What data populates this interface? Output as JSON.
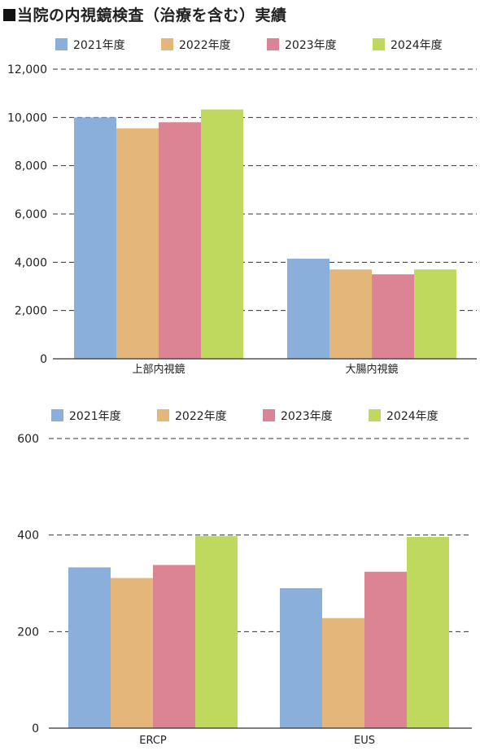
{
  "title": "■当院の内視鏡検査（治療を含む）実績",
  "colors": {
    "2021": "#8aafdb",
    "2022": "#e5b67a",
    "2023": "#dc8494",
    "2024": "#bfd95e",
    "grid": "#333333",
    "axis": "#333333"
  },
  "chart_data": [
    {
      "type": "bar",
      "categories": [
        "上部内視鏡",
        "大腸内視鏡"
      ],
      "series": [
        {
          "name": "2021年度",
          "values": [
            10000,
            4150
          ]
        },
        {
          "name": "2022年度",
          "values": [
            9550,
            3700
          ]
        },
        {
          "name": "2023年度",
          "values": [
            9800,
            3500
          ]
        },
        {
          "name": "2024年度",
          "values": [
            10330,
            3700
          ]
        }
      ],
      "ylim": [
        0,
        12000
      ],
      "yticks": [
        0,
        2000,
        4000,
        6000,
        8000,
        10000,
        12000
      ],
      "ytick_labels": [
        "0",
        "2,000",
        "4,000",
        "6,000",
        "8,000",
        "10,000",
        "12,000"
      ],
      "grid": "dashed horizontal",
      "legend": "top"
    },
    {
      "type": "bar",
      "categories": [
        "ERCP",
        "EUS"
      ],
      "series": [
        {
          "name": "2021年度",
          "values": [
            333,
            290
          ]
        },
        {
          "name": "2022年度",
          "values": [
            311,
            228
          ]
        },
        {
          "name": "2023年度",
          "values": [
            338,
            324
          ]
        },
        {
          "name": "2024年度",
          "values": [
            398,
            396
          ]
        }
      ],
      "ylim": [
        0,
        600
      ],
      "yticks": [
        0,
        200,
        400,
        600
      ],
      "ytick_labels": [
        "0",
        "200",
        "400",
        "600"
      ],
      "grid": "dashed horizontal",
      "legend": "top"
    }
  ]
}
